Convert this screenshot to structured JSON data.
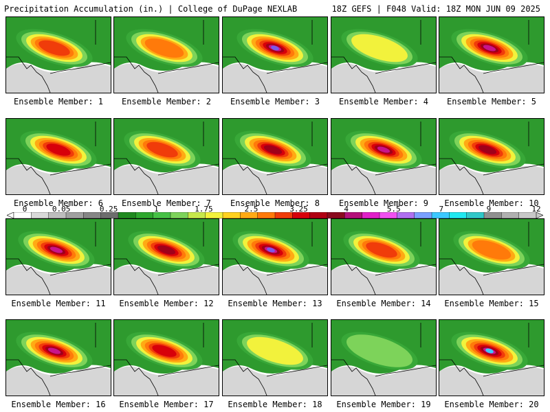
{
  "header": {
    "title": "Precipitation Accumulation (in.) | College of DuPage NEXLAB",
    "run_info": "18Z GEFS | F048 Valid: 18Z MON JUN 09 2025"
  },
  "panels": [
    {
      "label": "Ensemble Member: 1",
      "peak": 3.0
    },
    {
      "label": "Ensemble Member: 2",
      "peak": 2.5
    },
    {
      "label": "Ensemble Member: 3",
      "peak": 6.0
    },
    {
      "label": "Ensemble Member: 4",
      "peak": 1.5
    },
    {
      "label": "Ensemble Member: 5",
      "peak": 5.0
    },
    {
      "label": "Ensemble Member: 6",
      "peak": 3.5
    },
    {
      "label": "Ensemble Member: 7",
      "peak": 3.0
    },
    {
      "label": "Ensemble Member: 8",
      "peak": 4.0
    },
    {
      "label": "Ensemble Member: 9",
      "peak": 5.0
    },
    {
      "label": "Ensemble Member: 10",
      "peak": 4.0
    },
    {
      "label": "Ensemble Member: 11",
      "peak": 5.0
    },
    {
      "label": "Ensemble Member: 12",
      "peak": 4.0
    },
    {
      "label": "Ensemble Member: 13",
      "peak": 6.0
    },
    {
      "label": "Ensemble Member: 14",
      "peak": 3.0
    },
    {
      "label": "Ensemble Member: 15",
      "peak": 2.5
    },
    {
      "label": "Ensemble Member: 16",
      "peak": 5.0
    },
    {
      "label": "Ensemble Member: 17",
      "peak": 3.5
    },
    {
      "label": "Ensemble Member: 18",
      "peak": 1.5
    },
    {
      "label": "Ensemble Member: 19",
      "peak": 1.25
    },
    {
      "label": "Ensemble Member: 20",
      "peak": 7.0
    }
  ],
  "colorbar": {
    "labels": [
      "0",
      "0.05",
      "0.25",
      "1",
      "1.75",
      "2.5",
      "3.25",
      "4",
      "5.5",
      "7",
      "9",
      "12"
    ],
    "colors": [
      "#ffffff",
      "#d9d9d9",
      "#bdbdbd",
      "#a0a0a0",
      "#868686",
      "#6d6d6d",
      "#1f8a1f",
      "#2ea82e",
      "#45c145",
      "#7dd35a",
      "#c6e84a",
      "#f2f23c",
      "#ffd21f",
      "#ffaa14",
      "#ff7a0a",
      "#f03c0a",
      "#d7000a",
      "#b00012",
      "#8a0a1e",
      "#b4107a",
      "#e020c8",
      "#f050f0",
      "#b070f0",
      "#7aa0ff",
      "#3cc8ff",
      "#20e8f0",
      "#30c8c8",
      "#909090",
      "#b0b0b0",
      "#c8c8c8"
    ]
  }
}
